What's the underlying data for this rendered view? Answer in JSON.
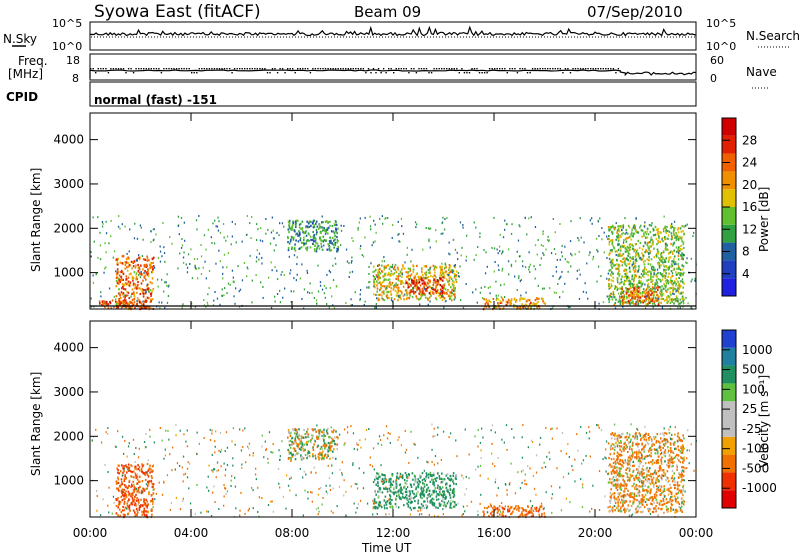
{
  "header": {
    "station": "Syowa East (fitACF)",
    "beam": "Beam 09",
    "date": "07/Sep/2010"
  },
  "top_panels": {
    "nsky_label": "N.Sky",
    "nsearch_label": "N.Search",
    "nsky_ticks_left": [
      "10^5",
      "10^0"
    ],
    "nsky_ticks_right": [
      "10^5",
      "10^0"
    ],
    "freq_label_line1": "Freq.",
    "freq_label_line2": "[MHz]",
    "freq_ticks": [
      "18",
      "8"
    ],
    "nave_label": "Nave",
    "nave_ticks": [
      "60",
      "0"
    ],
    "cpid_label": "CPID",
    "cpid_value": "normal (fast) -151"
  },
  "colors": {
    "power_scale": [
      "#2020e0",
      "#2040c0",
      "#2060a0",
      "#30a040",
      "#60c030",
      "#e0c000",
      "#f09000",
      "#f06000",
      "#e02000",
      "#d00000"
    ],
    "velocity_scale": [
      "#2040d0",
      "#2080a0",
      "#209060",
      "#60c040",
      "#c0c0c0",
      "#c0c0c0",
      "#f0a000",
      "#f07000",
      "#f03000",
      "#e00000"
    ]
  },
  "chart_data": [
    {
      "type": "heatmap",
      "name": "power",
      "ylabel": "Slant Range [km]",
      "x_tick_labels": [
        "00:00",
        "04:00",
        "08:00",
        "12:00",
        "16:00",
        "20:00",
        "00:00"
      ],
      "y_tick_labels": [
        "1000",
        "2000",
        "3000",
        "4000"
      ],
      "ylim": [
        180,
        4600
      ],
      "xlim_hours": [
        0,
        24
      ],
      "colorbar": {
        "label": "Power [dB]",
        "ticks": [
          "4",
          "8",
          "12",
          "16",
          "20",
          "24",
          "28"
        ],
        "range": [
          0,
          30
        ]
      },
      "echo_regions": [
        {
          "t": [
            1.0,
            2.5
          ],
          "r": [
            200,
            1400
          ],
          "value": 22
        },
        {
          "t": [
            0.3,
            2.4
          ],
          "r": [
            200,
            400
          ],
          "value": 24
        },
        {
          "t": [
            7.8,
            9.8
          ],
          "r": [
            1500,
            2200
          ],
          "value": 10
        },
        {
          "t": [
            11.2,
            14.5
          ],
          "r": [
            400,
            1200
          ],
          "value": 18
        },
        {
          "t": [
            12.5,
            14.0
          ],
          "r": [
            550,
            900
          ],
          "value": 26
        },
        {
          "t": [
            15.5,
            18.0
          ],
          "r": [
            200,
            450
          ],
          "value": 20
        },
        {
          "t": [
            20.5,
            23.5
          ],
          "r": [
            300,
            2100
          ],
          "value": 14
        },
        {
          "t": [
            21.0,
            22.5
          ],
          "r": [
            300,
            700
          ],
          "value": 22
        }
      ]
    },
    {
      "type": "heatmap",
      "name": "velocity",
      "ylabel": "Slant Range [km]",
      "xlabel": "Time UT",
      "x_tick_labels": [
        "00:00",
        "04:00",
        "08:00",
        "12:00",
        "16:00",
        "20:00",
        "00:00"
      ],
      "y_tick_labels": [
        "1000",
        "2000",
        "3000",
        "4000"
      ],
      "ylim": [
        180,
        4600
      ],
      "xlim_hours": [
        0,
        24
      ],
      "colorbar": {
        "label": "Velocity [m s⁻¹]",
        "ticks": [
          "1000",
          "500",
          "100",
          "25",
          "-25",
          "-100",
          "-500",
          "-1000"
        ]
      },
      "echo_regions": [
        {
          "t": [
            1.0,
            2.5
          ],
          "r": [
            200,
            1400
          ],
          "value": -300
        },
        {
          "t": [
            7.8,
            9.8
          ],
          "r": [
            1500,
            2200
          ],
          "value": 0
        },
        {
          "t": [
            11.2,
            14.5
          ],
          "r": [
            400,
            1200
          ],
          "value": 150
        },
        {
          "t": [
            15.5,
            18.0
          ],
          "r": [
            200,
            450
          ],
          "value": -200
        },
        {
          "t": [
            20.5,
            23.5
          ],
          "r": [
            300,
            2100
          ],
          "value": -80
        }
      ]
    }
  ]
}
